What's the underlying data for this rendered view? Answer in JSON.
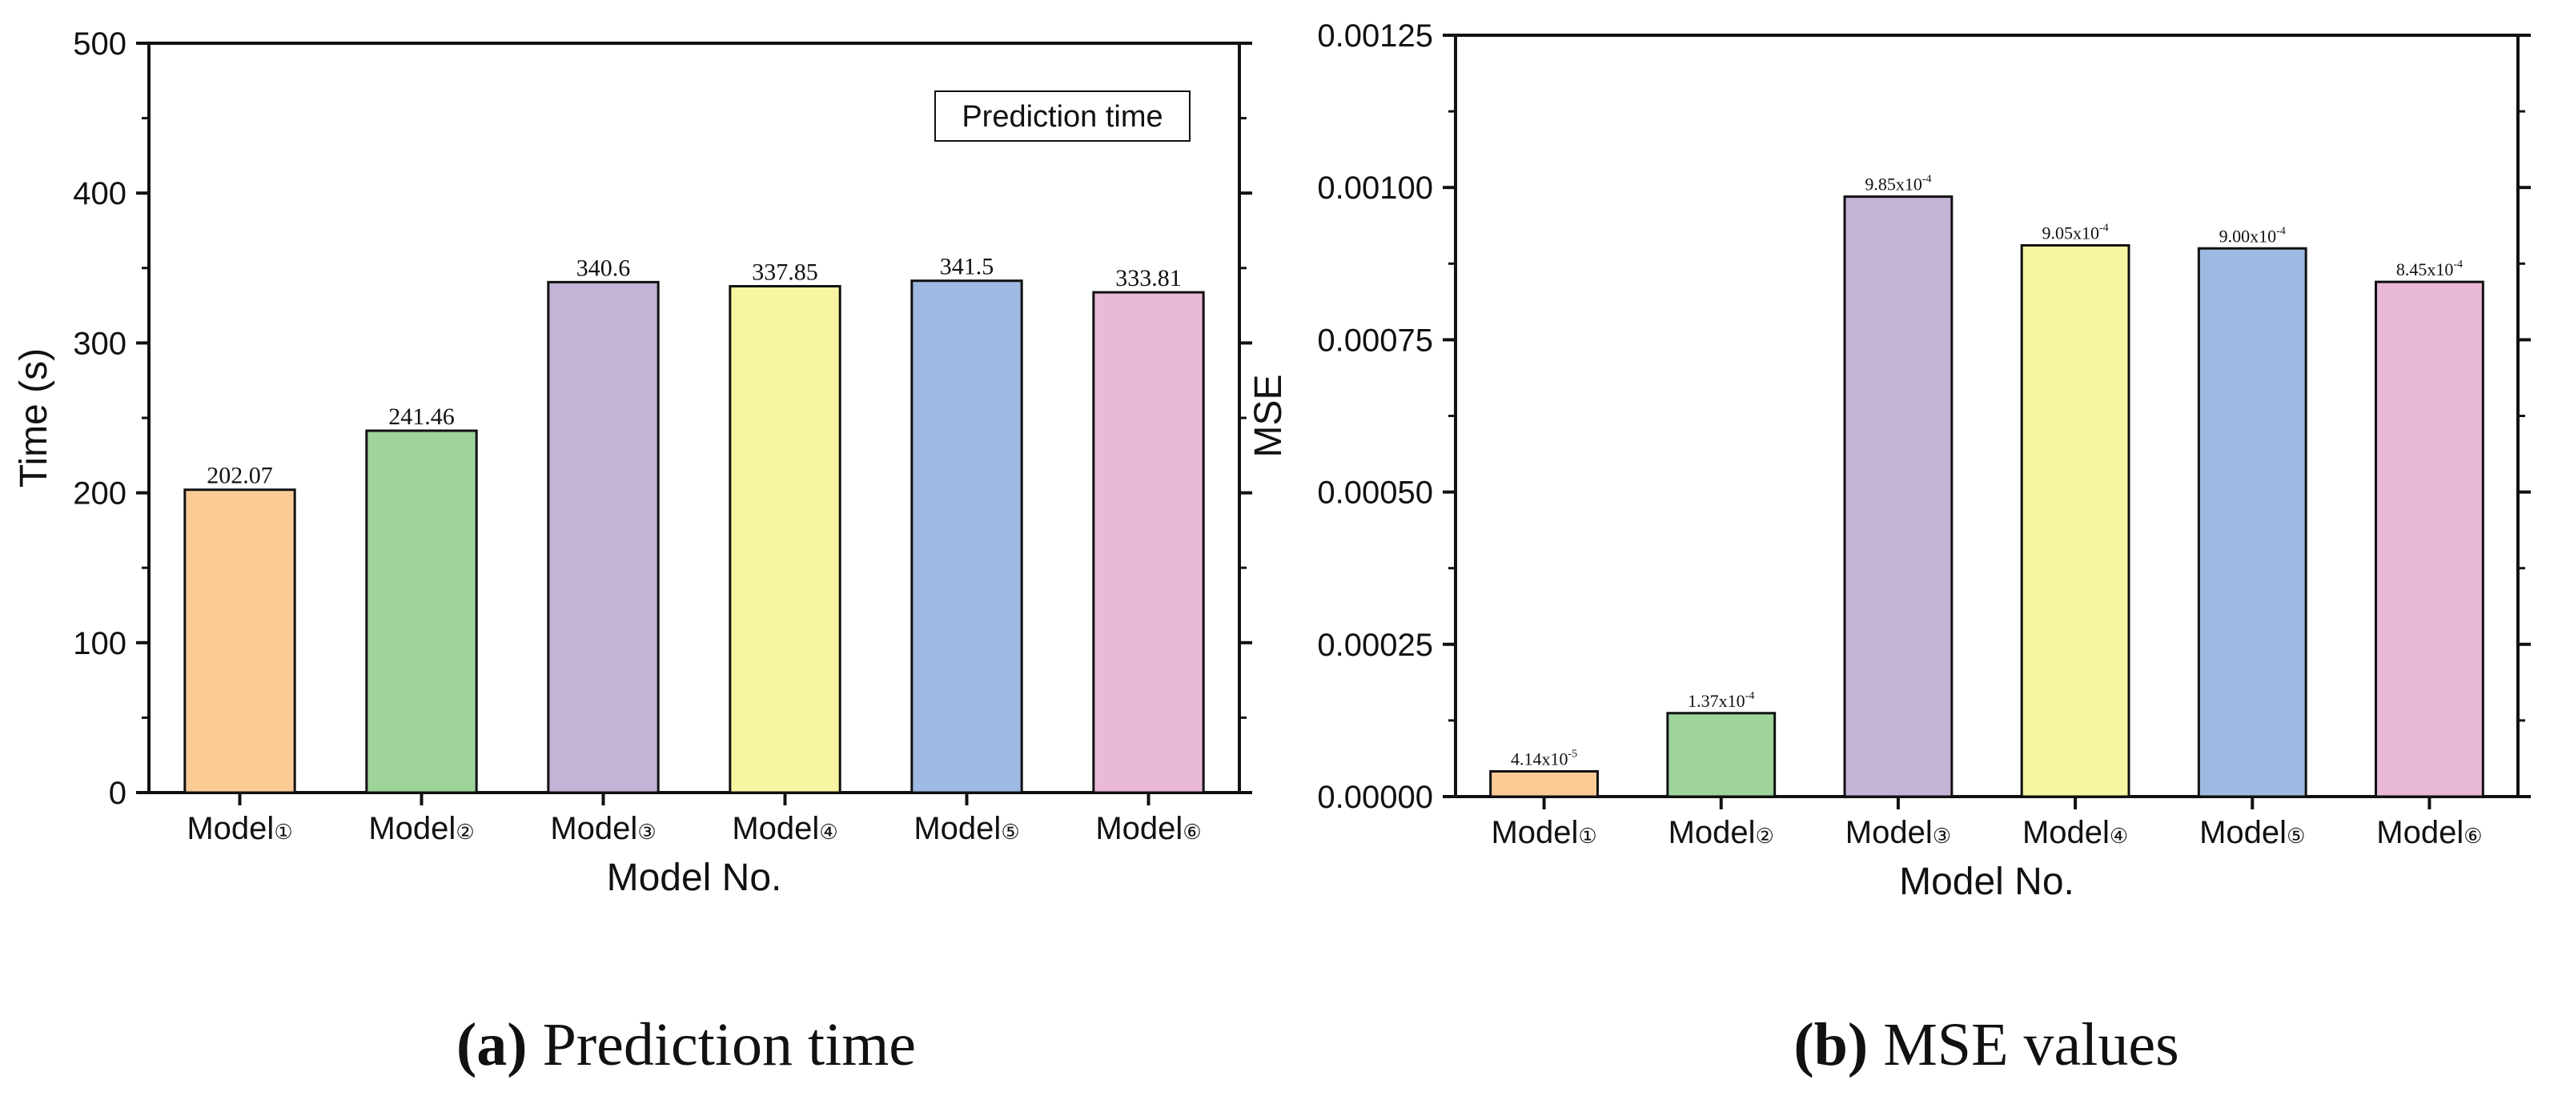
{
  "chart_data": [
    {
      "type": "bar",
      "title": "",
      "xlabel": "Model No.",
      "ylabel": "Time (s)",
      "ylim": [
        0,
        500
      ],
      "yticks": [
        "0",
        "100",
        "200",
        "300",
        "400",
        "500"
      ],
      "yticks_values": [
        0,
        100,
        200,
        300,
        400,
        500
      ],
      "categories": [
        "Model①",
        "Model②",
        "Model③",
        "Model④",
        "Model⑤",
        "Model⑥"
      ],
      "values": [
        202.07,
        241.46,
        340.6,
        337.85,
        341.5,
        333.81
      ],
      "data_labels": [
        "202.07",
        "241.46",
        "340.6",
        "337.85",
        "341.5",
        "333.81"
      ],
      "legend": "Prediction time",
      "legend_position": "top-right",
      "colors": [
        "#FBCB96",
        "#9ED39A",
        "#C3B3D6",
        "#F8F5A2",
        "#9FBAE2",
        "#EAB9D7"
      ],
      "caption_letter": "(a)",
      "caption_text": " Prediction time"
    },
    {
      "type": "bar",
      "title": "",
      "xlabel": "Model No.",
      "ylabel": "MSE",
      "ylim": [
        0,
        0.00125
      ],
      "yticks": [
        "0.00000",
        "0.00025",
        "0.00050",
        "0.00075",
        "0.00100",
        "0.00125"
      ],
      "yticks_values": [
        0,
        0.00025,
        0.0005,
        0.00075,
        0.001,
        0.00125
      ],
      "categories": [
        "Model①",
        "Model②",
        "Model③",
        "Model④",
        "Model⑤",
        "Model⑥"
      ],
      "values": [
        4.14e-05,
        0.000137,
        0.000985,
        0.000905,
        0.0009,
        0.000845
      ],
      "data_labels": [
        {
          "base": "4.14x10",
          "exp": "-5"
        },
        {
          "base": "1.37x10",
          "exp": "-4"
        },
        {
          "base": "9.85x10",
          "exp": "-4"
        },
        {
          "base": "9.05x10",
          "exp": "-4"
        },
        {
          "base": "9.00x10",
          "exp": "-4"
        },
        {
          "base": "8.45x10",
          "exp": "-4"
        }
      ],
      "colors": [
        "#FBCB96",
        "#9ED39A",
        "#C3B3D6",
        "#F8F5A2",
        "#9FBAE2",
        "#EAB9D7"
      ],
      "caption_letter": "(b)",
      "caption_text": " MSE values"
    }
  ]
}
